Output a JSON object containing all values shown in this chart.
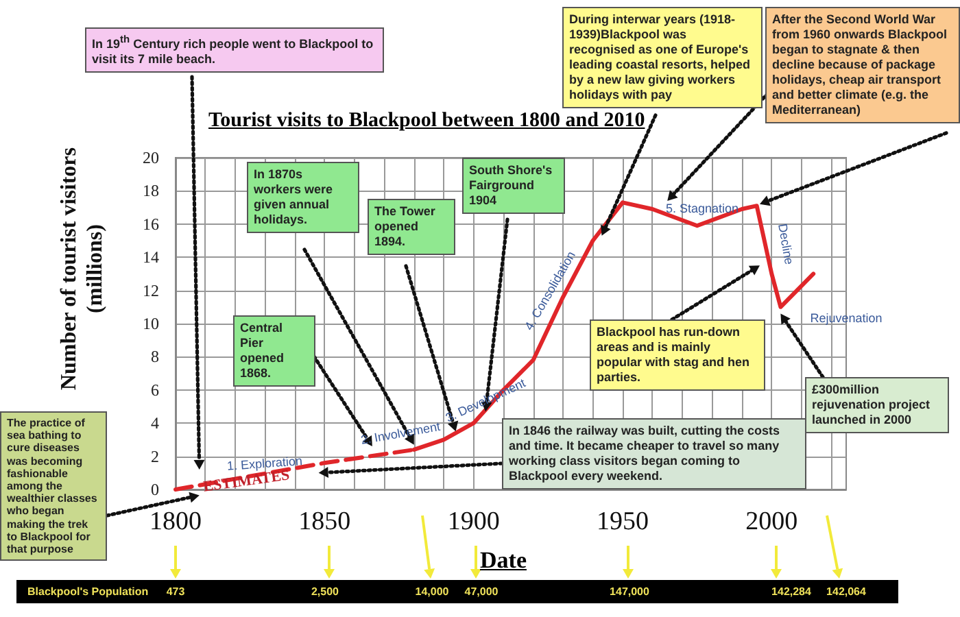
{
  "chart_data": {
    "type": "line",
    "title": "Tourist visits to Blackpool between 1800 and 2010",
    "xlabel": "Date",
    "ylabel": "Number of tourist visitors (millions)",
    "xlim": [
      1800,
      2025
    ],
    "ylim": [
      0,
      20
    ],
    "xticks": [
      1800,
      {
        "value": 1810,
        "label": null
      },
      {
        "value": 1820,
        "label": null
      },
      {
        "value": 1830,
        "label": null
      },
      {
        "value": 1840,
        "label": null
      },
      1850,
      {
        "value": 1860,
        "label": null
      },
      {
        "value": 1870,
        "label": null
      },
      {
        "value": 1880,
        "label": null
      },
      {
        "value": 1890,
        "label": null
      },
      1900,
      {
        "value": 1910,
        "label": null
      },
      {
        "value": 1920,
        "label": null
      },
      {
        "value": 1930,
        "label": null
      },
      {
        "value": 1940,
        "label": null
      },
      1950,
      {
        "value": 1960,
        "label": null
      },
      {
        "value": 1970,
        "label": null
      },
      {
        "value": 1980,
        "label": null
      },
      {
        "value": 1990,
        "label": null
      },
      2000,
      {
        "value": 2010,
        "label": null
      },
      {
        "value": 2020,
        "label": null
      }
    ],
    "yticks": [
      0,
      2,
      4,
      6,
      8,
      10,
      12,
      14,
      16,
      18,
      20
    ],
    "grid": true,
    "marker": "none",
    "series": [
      {
        "color": "#e0262a",
        "line_style": "dashed",
        "x": [
          1800,
          1850,
          1880
        ],
        "values": [
          0,
          1.6,
          2.4
        ]
      },
      {
        "color": "#e0262a",
        "line_style": "solid",
        "x": [
          1880,
          1890,
          1900,
          1910,
          1920,
          1930,
          1940,
          1950,
          1960,
          1975,
          1990,
          1995,
          2000,
          2003,
          2014
        ],
        "values": [
          2.4,
          3,
          4,
          6,
          7.8,
          11.6,
          15,
          17.3,
          16.9,
          15.9,
          16.9,
          17.1,
          13,
          11,
          13
        ]
      }
    ],
    "annotations": [
      "In 19$^{th}$ Century rich people went to Blackpool to visit its 7 mile  beach.",
      "In 1870s workers were given annual holidays.",
      "The Tower opened 1894.",
      "South Shore's Fairground 1904",
      "Central Pier opened 1868.",
      {
        "text": "During interwar years (1918-1939)Blackpool was recognised as one of Europe's leading coastal resorts, helped by a new law giving workers holidays with pay",
        "x": 1943,
        "y": 15.3
      },
      "After the Second World War from 1960 onwards Blackpool began to stagnate & then decline because of package holidays, cheap air transport and better climate (e.g. the Mediterranean)",
      "Blackpool has run-down areas and is mainly popular with  stag and hen parties.",
      "£300million rejuvenation project launched in 2000",
      "In 1846 the railway was built, cutting the costs and time.  It became cheaper to travel so many working class visitors began coming to Blackpool every weekend.",
      "The practice of sea bathing to cure diseases was becoming fashionable among the wealthier classes who began making the trek to Blackpool for that purpose",
      "ESTIMATES",
      "1. Exploration",
      "2. Involvement",
      "3. Development",
      "4. Consolidation",
      "5. Stagnation",
      "Decline",
      "Rejuvenation",
      "Blackpool's Population",
      "473",
      "2,500",
      "14,000",
      "47,000",
      "147,000",
      "142,284",
      "142,064"
    ]
  }
}
